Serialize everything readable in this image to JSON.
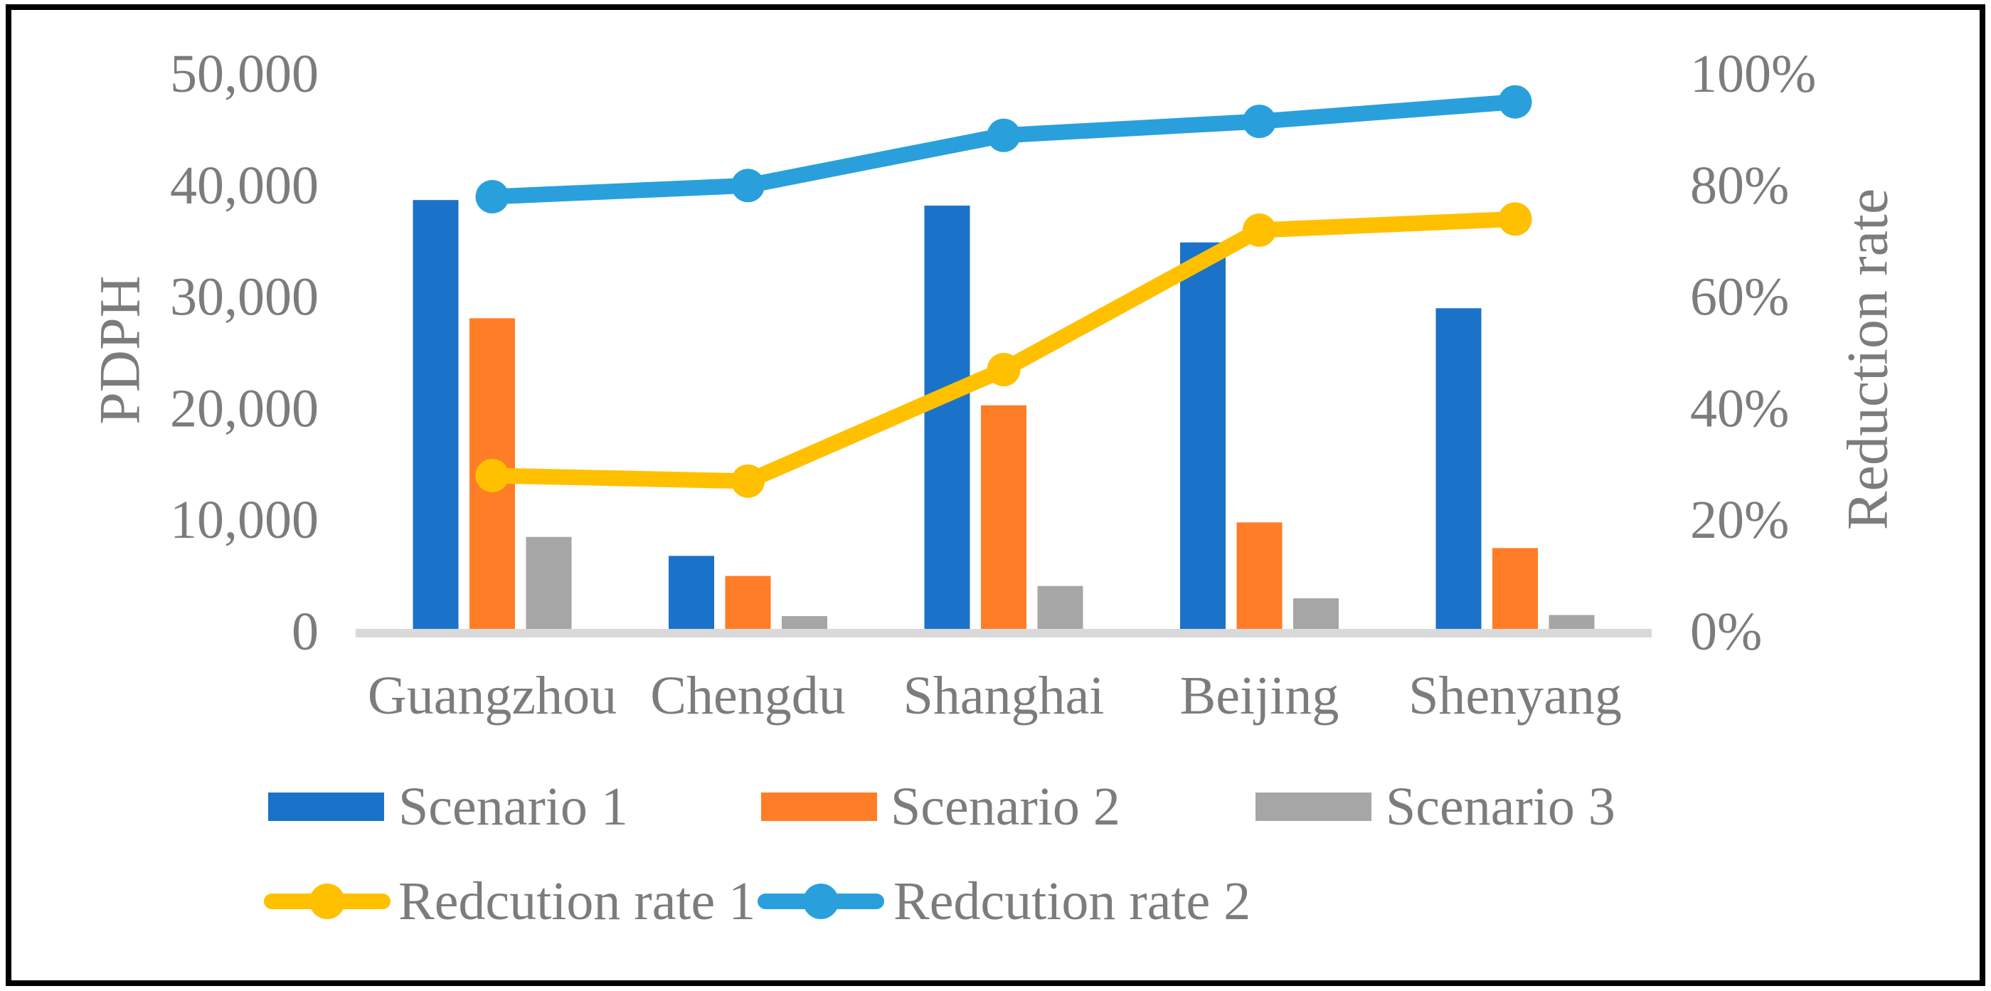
{
  "chart_data": {
    "type": "bar+line combo",
    "categories": [
      "Guangzhou",
      "Chengdu",
      "Shanghai",
      "Beijing",
      "Shenyang"
    ],
    "bar_series": [
      {
        "name": "Scenario 1",
        "color": "#1A73C8",
        "axis": "left",
        "values": [
          38700,
          6800,
          38200,
          34900,
          29000
        ]
      },
      {
        "name": "Scenario 2",
        "color": "#FF7D26",
        "axis": "left",
        "values": [
          28100,
          5000,
          20300,
          9800,
          7500
        ]
      },
      {
        "name": "Scenario 3",
        "color": "#A6A6A6",
        "axis": "left",
        "values": [
          8500,
          1400,
          4100,
          3000,
          1500
        ]
      }
    ],
    "line_series": [
      {
        "name": "Redcution rate 1",
        "color": "#FFC000",
        "axis": "right",
        "values_pct": [
          28,
          27,
          47,
          72,
          74
        ]
      },
      {
        "name": "Redcution rate 2",
        "color": "#29A0DC",
        "axis": "right",
        "values_pct": [
          78,
          80,
          89,
          91.5,
          95
        ]
      }
    ],
    "left_axis": {
      "label": "PDPH",
      "min": 0,
      "max": 50000,
      "tick_step": 10000,
      "tick_labels": [
        "0",
        "10,000",
        "20,000",
        "30,000",
        "40,000",
        "50,000"
      ]
    },
    "right_axis": {
      "label": "Reduction rate",
      "min": 0,
      "max": 100,
      "tick_step": 20,
      "tick_labels": [
        "0%",
        "20%",
        "40%",
        "60%",
        "80%",
        "100%"
      ]
    },
    "legend": {
      "position": "bottom",
      "rows": [
        [
          "Scenario 1",
          "Scenario 2",
          "Scenario 3"
        ],
        [
          "Redcution rate 1",
          "Redcution rate 2"
        ]
      ]
    },
    "grid": false,
    "colors": {
      "text": "#7C7C7C",
      "axis_line": "#D9D9D9",
      "border": "#000000",
      "background": "#FFFFFF"
    }
  }
}
